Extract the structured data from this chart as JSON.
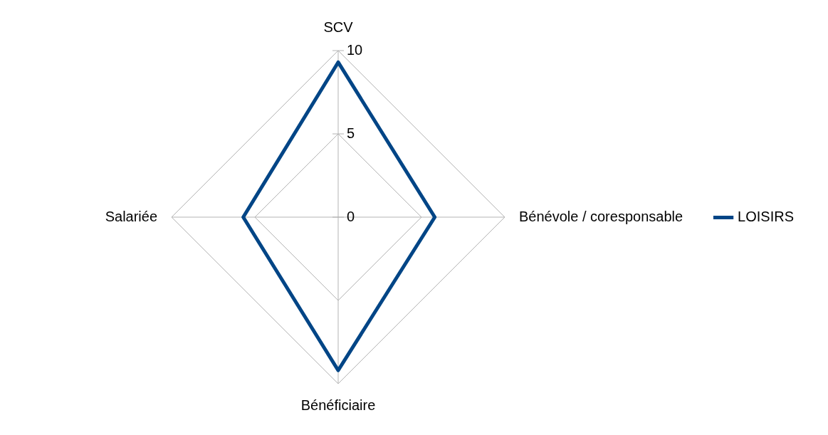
{
  "chart_data": {
    "type": "radar",
    "categories": [
      "SCV",
      "Bénévole / coresponsable",
      "Bénéficiaire",
      "Salariée"
    ],
    "series": [
      {
        "name": "LOISIRS",
        "color": "#004586",
        "values": [
          9.3,
          5.8,
          9.2,
          5.7
        ]
      }
    ],
    "ylim": [
      0,
      10
    ],
    "yticks": [
      0,
      5,
      10
    ],
    "grid": true,
    "legend": "right",
    "marker": "none"
  }
}
